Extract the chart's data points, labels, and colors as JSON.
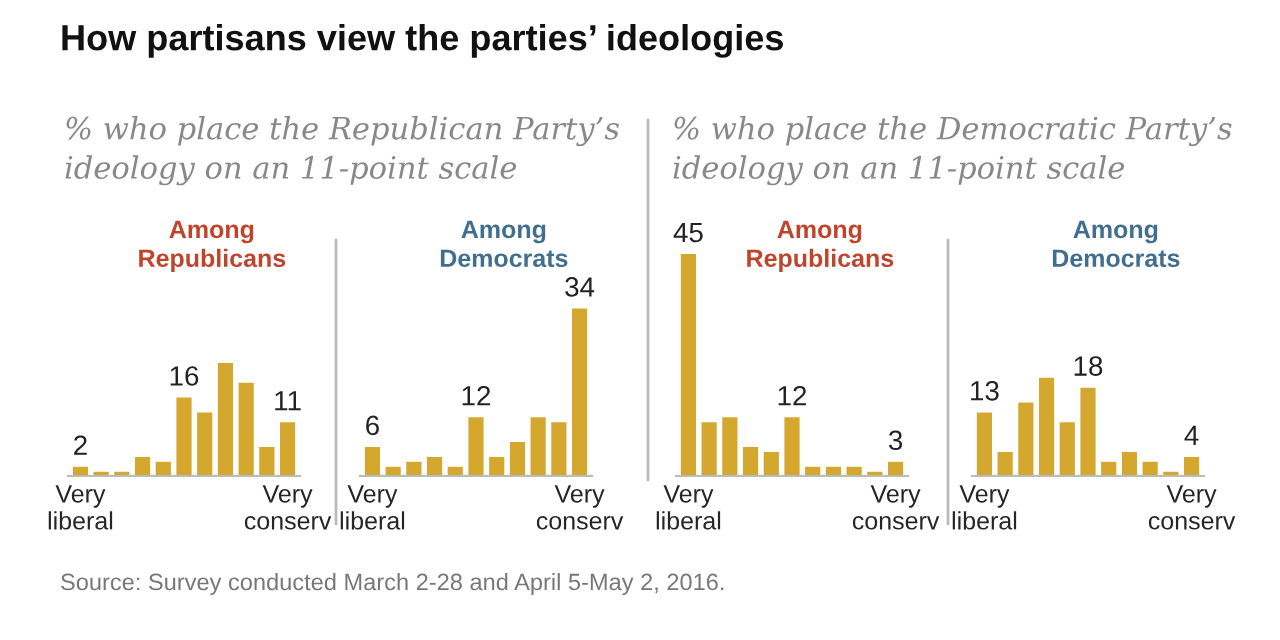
{
  "chart_data": [
    {
      "type": "bar",
      "title": "Among\nRepublicans",
      "subtitle": "% who place the Republican Party’s\nideology on an 11-point scale",
      "annotations": [
        "How partisans view the parties’ ideologies",
        "Source: Survey conducted March 2-28 and April 5-May 2, 2016."
      ],
      "categories": [
        "Very\nliberal",
        null,
        null,
        null,
        null,
        null,
        null,
        null,
        null,
        null,
        "Very\nconserv"
      ],
      "values": [
        2,
        1,
        1,
        4,
        3,
        16,
        13,
        23,
        19,
        6,
        11
      ],
      "value_labels": [
        "2",
        null,
        null,
        null,
        null,
        "16",
        null,
        null,
        null,
        null,
        "11"
      ],
      "color": "#d4a82f",
      "tick_labels": "x"
    },
    {
      "type": "bar",
      "title": "Among\nDemocrats",
      "categories": [
        "Very\nliberal",
        null,
        null,
        null,
        null,
        null,
        null,
        null,
        null,
        null,
        "Very\nconserv"
      ],
      "values": [
        6,
        2,
        3,
        4,
        2,
        12,
        4,
        7,
        12,
        11,
        34
      ],
      "value_labels": [
        "6",
        null,
        null,
        null,
        null,
        "12",
        null,
        null,
        null,
        null,
        "34"
      ],
      "color": "#d4a82f",
      "tick_labels": "x"
    },
    {
      "type": "bar",
      "title": "Among\nRepublicans",
      "subtitle": "% who place the Democratic Party’s\nideology on an 11-point scale",
      "categories": [
        "Very\nliberal",
        null,
        null,
        null,
        null,
        null,
        null,
        null,
        null,
        null,
        "Very\nconserv"
      ],
      "values": [
        45,
        11,
        12,
        6,
        5,
        12,
        2,
        2,
        2,
        1,
        3
      ],
      "value_labels": [
        "45",
        null,
        null,
        null,
        null,
        "12",
        null,
        null,
        null,
        null,
        "3"
      ],
      "color": "#d4a82f",
      "tick_labels": "x"
    },
    {
      "type": "bar",
      "title": "Among\nDemocrats",
      "categories": [
        "Very\nliberal",
        null,
        null,
        null,
        null,
        null,
        null,
        null,
        null,
        null,
        "Very\nconserv"
      ],
      "values": [
        13,
        5,
        15,
        20,
        11,
        18,
        3,
        5,
        3,
        1,
        4
      ],
      "value_labels": [
        "13",
        null,
        null,
        null,
        null,
        "18",
        null,
        null,
        null,
        null,
        "4"
      ],
      "color": "#d4a82f",
      "tick_labels": "x"
    }
  ]
}
